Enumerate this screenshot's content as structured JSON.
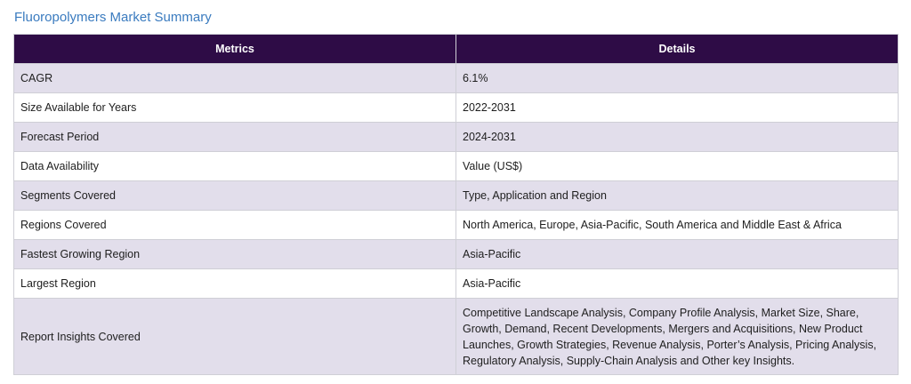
{
  "title": "Fluoropolymers Market Summary",
  "table": {
    "headers": [
      "Metrics",
      "Details"
    ],
    "rows": [
      {
        "metric": "CAGR",
        "detail": "6.1%"
      },
      {
        "metric": "Size Available for Years",
        "detail": "2022-2031"
      },
      {
        "metric": "Forecast Period",
        "detail": "2024-2031"
      },
      {
        "metric": "Data Availability",
        "detail": "Value (US$)"
      },
      {
        "metric": "Segments Covered",
        "detail": "Type, Application and Region"
      },
      {
        "metric": "Regions Covered",
        "detail": "North America, Europe, Asia-Pacific, South America and Middle East & Africa"
      },
      {
        "metric": "Fastest Growing Region",
        "detail": "Asia-Pacific"
      },
      {
        "metric": "Largest Region",
        "detail": "Asia-Pacific"
      },
      {
        "metric": "Report Insights Covered",
        "detail": "Competitive Landscape Analysis, Company Profile Analysis, Market Size, Share, Growth, Demand, Recent Developments, Mergers and Acquisitions, New Product Launches, Growth Strategies, Revenue Analysis, Porter’s Analysis, Pricing Analysis, Regulatory Analysis, Supply-Chain Analysis and Other key Insights."
      }
    ]
  },
  "colors": {
    "title": "#3a7bbf",
    "header_bg": "#2e0c46",
    "row_alt_bg": "#e2deeb"
  }
}
